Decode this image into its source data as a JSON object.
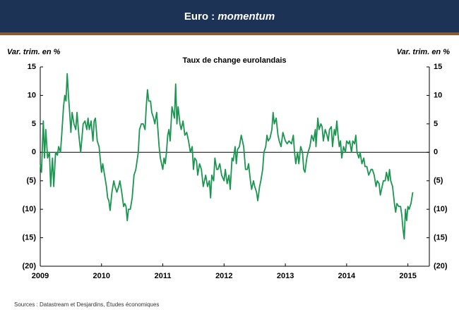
{
  "chart_data": {
    "type": "line",
    "title": "Euro :",
    "title_emphasis": "momentum",
    "subtitle": "Taux de change eurolandais",
    "y_label": "Var. trim. en %",
    "y2_label": "Var. trim. en %",
    "source": "Sources : Datastream et Desjardins, Études économiques",
    "xlim": [
      2009,
      2015.35
    ],
    "xticks": [
      2009,
      2010,
      2011,
      2012,
      2013,
      2014,
      2015
    ],
    "ylim": [
      -20,
      15
    ],
    "yticks": [
      {
        "value": -20,
        "label": "(20)"
      },
      {
        "value": -15,
        "label": "(15)"
      },
      {
        "value": -10,
        "label": "(10)"
      },
      {
        "value": -5,
        "label": "(5)"
      },
      0,
      5,
      10,
      15
    ],
    "y2lim": [
      -20,
      15
    ],
    "y2ticks": [
      {
        "value": -20,
        "label": "(20)"
      },
      {
        "value": -15,
        "label": "(15)"
      },
      {
        "value": -10,
        "label": "(10)"
      },
      {
        "value": -5,
        "label": "(5)"
      },
      0,
      5,
      10,
      15
    ],
    "zero_line": true,
    "x": [
      2009.0,
      2009.02,
      2009.05,
      2009.07,
      2009.09,
      2009.12,
      2009.15,
      2009.17,
      2009.2,
      2009.22,
      2009.25,
      2009.28,
      2009.3,
      2009.33,
      2009.35,
      2009.38,
      2009.4,
      2009.42,
      2009.44,
      2009.46,
      2009.48,
      2009.5,
      2009.52,
      2009.55,
      2009.58,
      2009.6,
      2009.63,
      2009.66,
      2009.7,
      2009.73,
      2009.76,
      2009.78,
      2009.8,
      2009.83,
      2009.86,
      2009.88,
      2009.9,
      2009.93,
      2009.96,
      2010.0,
      2010.02,
      2010.05,
      2010.08,
      2010.1,
      2010.12,
      2010.14,
      2010.17,
      2010.2,
      2010.22,
      2010.25,
      2010.28,
      2010.3,
      2010.33,
      2010.36,
      2010.38,
      2010.4,
      2010.42,
      2010.44,
      2010.47,
      2010.5,
      2010.53,
      2010.56,
      2010.6,
      2010.62,
      2010.65,
      2010.68,
      2010.71,
      2010.73,
      2010.75,
      2010.77,
      2010.8,
      2010.82,
      2010.85,
      2010.87,
      2010.9,
      2010.92,
      2010.94,
      2010.96,
      2011.0,
      2011.02,
      2011.04,
      2011.06,
      2011.08,
      2011.1,
      2011.12,
      2011.15,
      2011.17,
      2011.19,
      2011.21,
      2011.23,
      2011.25,
      2011.28,
      2011.3,
      2011.33,
      2011.36,
      2011.39,
      2011.42,
      2011.45,
      2011.48,
      2011.5,
      2011.52,
      2011.55,
      2011.57,
      2011.6,
      2011.63,
      2011.66,
      2011.7,
      2011.73,
      2011.76,
      2011.78,
      2011.8,
      2011.83,
      2011.85,
      2011.88,
      2011.9,
      2011.93,
      2011.96,
      2012.0,
      2012.02,
      2012.05,
      2012.08,
      2012.1,
      2012.13,
      2012.15,
      2012.18,
      2012.2,
      2012.22,
      2012.25,
      2012.28,
      2012.3,
      2012.32,
      2012.35,
      2012.38,
      2012.4,
      2012.43,
      2012.45,
      2012.48,
      2012.5,
      2012.53,
      2012.55,
      2012.58,
      2012.6,
      2012.63,
      2012.65,
      2012.68,
      2012.7,
      2012.72,
      2012.75,
      2012.78,
      2012.8,
      2012.82,
      2012.85,
      2012.88,
      2012.9,
      2012.93,
      2012.96,
      2013.0,
      2013.03,
      2013.06,
      2013.1,
      2013.13,
      2013.15,
      2013.17,
      2013.2,
      2013.22,
      2013.25,
      2013.28,
      2013.3,
      2013.32,
      2013.35,
      2013.37,
      2013.4,
      2013.43,
      2013.46,
      2013.49,
      2013.5,
      2013.53,
      2013.55,
      2013.58,
      2013.6,
      2013.62,
      2013.65,
      2013.68,
      2013.7,
      2013.72,
      2013.75,
      2013.77,
      2013.8,
      2013.82,
      2013.84,
      2013.86,
      2013.88,
      2013.9,
      2013.92,
      2013.95,
      2013.98,
      2014.0,
      2014.03,
      2014.05,
      2014.08,
      2014.1,
      2014.13,
      2014.15,
      2014.17,
      2014.2,
      2014.22,
      2014.25,
      2014.28,
      2014.3,
      2014.33,
      2014.36,
      2014.4,
      2014.42,
      2014.45,
      2014.48,
      2014.5,
      2014.53,
      2014.55,
      2014.58,
      2014.6,
      2014.63,
      2014.65,
      2014.68,
      2014.7,
      2014.72,
      2014.75,
      2014.78,
      2014.8,
      2014.82,
      2014.85,
      2014.88,
      2014.9,
      2014.92,
      2014.94,
      2014.96,
      2014.98,
      2015.0,
      2015.02,
      2015.05,
      2015.08
    ],
    "series": [
      {
        "color": "#1a9650",
        "values": [
          -2,
          -3.5,
          5.5,
          -1,
          4,
          -1,
          0,
          -6,
          -1,
          -6,
          0,
          -0.5,
          1,
          0,
          3,
          8,
          10,
          9,
          13.8,
          10,
          7,
          3.5,
          7,
          5,
          4,
          7,
          3,
          0,
          5,
          5.5,
          4,
          6,
          4,
          5.5,
          2,
          5.5,
          6,
          2,
          1,
          -3.5,
          -2,
          -4,
          -6,
          -8,
          -8.5,
          -10.2,
          -7,
          -5,
          -6,
          -7,
          -6,
          -5,
          -7,
          -9.5,
          -9,
          -9.5,
          -12,
          -10,
          -10,
          -8,
          -4,
          -3,
          0,
          4,
          5,
          5,
          4,
          8,
          11,
          9,
          9,
          7,
          6,
          5,
          7,
          4,
          1,
          -1,
          -3,
          -1,
          -2,
          0,
          3,
          4,
          2,
          8,
          7,
          6,
          12,
          5,
          8,
          5,
          4,
          5.5,
          3,
          3.5,
          2,
          0,
          1,
          -3,
          -1,
          -1.5,
          -4,
          -2,
          -3,
          -6,
          -4,
          -6,
          -5,
          -8,
          -4,
          -5,
          -1,
          -3,
          -3,
          -2,
          -4,
          -5,
          -3,
          -5.5,
          -4,
          -6.5,
          -1,
          -1.5,
          1,
          -2,
          0.5,
          1,
          3,
          2,
          1,
          -3,
          -3,
          -2,
          -5,
          -6.5,
          -5,
          -6,
          -7,
          -8.5,
          -6,
          -5,
          -3,
          0,
          1,
          3,
          2,
          2.5,
          4,
          7,
          5,
          6,
          3,
          2,
          1,
          3.5,
          2,
          1.5,
          2,
          1.5,
          3,
          0,
          -2,
          0,
          -2,
          1,
          0,
          -3,
          -3.5,
          -1,
          0,
          1,
          3,
          2,
          4,
          1,
          6,
          4,
          5,
          4.5,
          2,
          4,
          3,
          2,
          4,
          4.5,
          1,
          4,
          3,
          5.5,
          3,
          1,
          2,
          -1,
          1,
          0,
          2,
          1.5,
          2,
          0,
          2,
          1.5,
          3,
          0,
          -1,
          0,
          -2,
          -1,
          -2.5,
          -2.5,
          -4,
          -3,
          -3,
          -4,
          -6,
          -5,
          -5.5,
          -7.5,
          -6,
          -5,
          -5,
          -3.5,
          -5,
          -3,
          -5,
          -6,
          -9,
          -10.5,
          -9,
          -9.5,
          -9.5,
          -11,
          -13.5,
          -15.2,
          -10,
          -12,
          -9.5,
          -10,
          -9,
          -7
        ]
      }
    ]
  }
}
